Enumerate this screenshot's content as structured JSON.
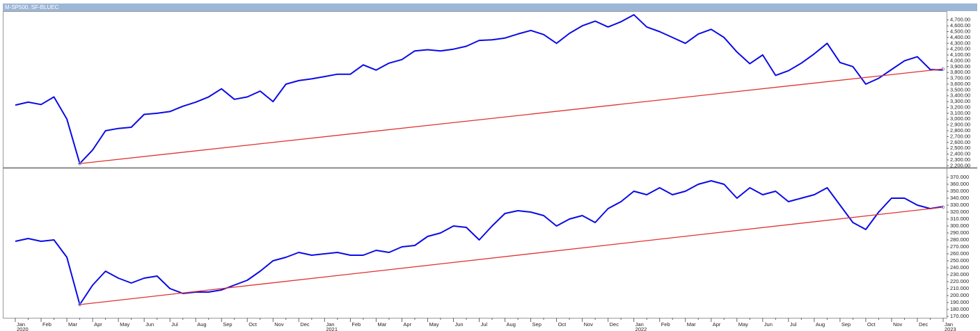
{
  "chart_data": [
    {
      "type": "line",
      "title": "M-SP500, SF-BLUEC",
      "series": [
        {
          "color": "#0a0ae6",
          "values": [
            3240,
            3290,
            3250,
            3380,
            3000,
            2237,
            2470,
            2800,
            2840,
            2860,
            3080,
            3100,
            3130,
            3220,
            3290,
            3380,
            3520,
            3340,
            3380,
            3480,
            3300,
            3600,
            3660,
            3690,
            3730,
            3770,
            3770,
            3930,
            3840,
            3960,
            4020,
            4170,
            4190,
            4170,
            4200,
            4250,
            4350,
            4360,
            4390,
            4460,
            4520,
            4450,
            4300,
            4470,
            4600,
            4680,
            4580,
            4670,
            4790,
            4580,
            4500,
            4400,
            4300,
            4460,
            4540,
            4400,
            4150,
            3950,
            4100,
            3750,
            3830,
            3960,
            4120,
            4300,
            3970,
            3900,
            3600,
            3700,
            3850,
            4000,
            4070,
            3850,
            3840
          ]
        }
      ],
      "trendline": {
        "color": "#e03030",
        "from": 2237,
        "to": 3860
      },
      "ylim": [
        2180,
        4840
      ],
      "yticks": [
        {
          "value": 2200,
          "label": "2,200.00"
        },
        {
          "value": 2300,
          "label": "2,300.00"
        },
        {
          "value": 2400,
          "label": "2,400.00"
        },
        {
          "value": 2500,
          "label": "2,500.00"
        },
        {
          "value": 2600,
          "label": "2,600.00"
        },
        {
          "value": 2700,
          "label": "2,700.00"
        },
        {
          "value": 2800,
          "label": "2,800.00"
        },
        {
          "value": 2900,
          "label": "2,900.00"
        },
        {
          "value": 3000,
          "label": "3,000.00"
        },
        {
          "value": 3100,
          "label": "3,100.00"
        },
        {
          "value": 3200,
          "label": "3,200.00"
        },
        {
          "value": 3300,
          "label": "3,300.00"
        },
        {
          "value": 3400,
          "label": "3,400.00"
        },
        {
          "value": 3500,
          "label": "3,500.00"
        },
        {
          "value": 3600,
          "label": "3,600.00"
        },
        {
          "value": 3700,
          "label": "3,700.00"
        },
        {
          "value": 3800,
          "label": "3,800.00"
        },
        {
          "value": 3900,
          "label": "3,900.00"
        },
        {
          "value": 4000,
          "label": "4,000.00"
        },
        {
          "value": 4100,
          "label": "4,100.00"
        },
        {
          "value": 4200,
          "label": "4,200.00"
        },
        {
          "value": 4300,
          "label": "4,300.00"
        },
        {
          "value": 4400,
          "label": "4,400.00"
        },
        {
          "value": 4500,
          "label": "4,500.00"
        },
        {
          "value": 4600,
          "label": "4,600.00"
        },
        {
          "value": 4700,
          "label": "4,700.00"
        }
      ]
    },
    {
      "type": "line",
      "categories": [
        "Jan",
        null,
        "Feb",
        null,
        "Mar",
        null,
        "Apr",
        null,
        "May",
        null,
        "Jun",
        null,
        "Jul",
        null,
        "Aug",
        null,
        "Sep",
        null,
        "Oct",
        null,
        "Nov",
        null,
        "Dec",
        null,
        "Jan",
        null,
        "Feb",
        null,
        "Mar",
        null,
        "Apr",
        null,
        "May",
        null,
        "Jun",
        null,
        "Jul",
        null,
        "Aug",
        null,
        "Sep",
        null,
        "Oct",
        null,
        "Nov",
        null,
        "Dec",
        null,
        "Jan",
        null,
        "Feb",
        null,
        "Mar",
        null,
        "Apr",
        null,
        "May",
        null,
        "Jun",
        null,
        "Jul",
        null,
        "Aug",
        null,
        "Sep",
        null,
        "Oct",
        null,
        "Nov",
        null,
        "Dec",
        null,
        "Jan"
      ],
      "years": [
        "2020",
        "2021",
        "2022",
        "2023"
      ],
      "series": [
        {
          "color": "#0a0ae6",
          "values": [
            278,
            282,
            278,
            280,
            255,
            187,
            215,
            235,
            225,
            218,
            225,
            228,
            210,
            203,
            205,
            205,
            208,
            215,
            222,
            235,
            250,
            255,
            262,
            258,
            260,
            262,
            258,
            258,
            265,
            262,
            270,
            272,
            285,
            290,
            300,
            298,
            280,
            300,
            318,
            322,
            320,
            315,
            300,
            310,
            315,
            305,
            325,
            335,
            350,
            345,
            355,
            345,
            350,
            360,
            365,
            360,
            340,
            355,
            345,
            350,
            335,
            340,
            345,
            355,
            330,
            305,
            295,
            320,
            340,
            340,
            330,
            325,
            328
          ]
        }
      ],
      "trendline": {
        "color": "#e03030",
        "from": 187,
        "to": 327
      },
      "ylim": [
        168,
        382
      ],
      "yticks": [
        {
          "value": 170,
          "label": "170.000"
        },
        {
          "value": 180,
          "label": "180.000"
        },
        {
          "value": 190,
          "label": "190.000"
        },
        {
          "value": 200,
          "label": "200.000"
        },
        {
          "value": 210,
          "label": "210.000"
        },
        {
          "value": 220,
          "label": "220.000"
        },
        {
          "value": 230,
          "label": "230.000"
        },
        {
          "value": 240,
          "label": "240.000"
        },
        {
          "value": 250,
          "label": "250.000"
        },
        {
          "value": 260,
          "label": "260.000"
        },
        {
          "value": 270,
          "label": "270.000"
        },
        {
          "value": 280,
          "label": "280.000"
        },
        {
          "value": 290,
          "label": "290.000"
        },
        {
          "value": 300,
          "label": "300.000"
        },
        {
          "value": 310,
          "label": "310.000"
        },
        {
          "value": 320,
          "label": "320.000"
        },
        {
          "value": 330,
          "label": "330.000"
        },
        {
          "value": 340,
          "label": "340.000"
        },
        {
          "value": 350,
          "label": "350.000"
        },
        {
          "value": 360,
          "label": "360.000"
        },
        {
          "value": 370,
          "label": "370.000"
        }
      ]
    }
  ]
}
